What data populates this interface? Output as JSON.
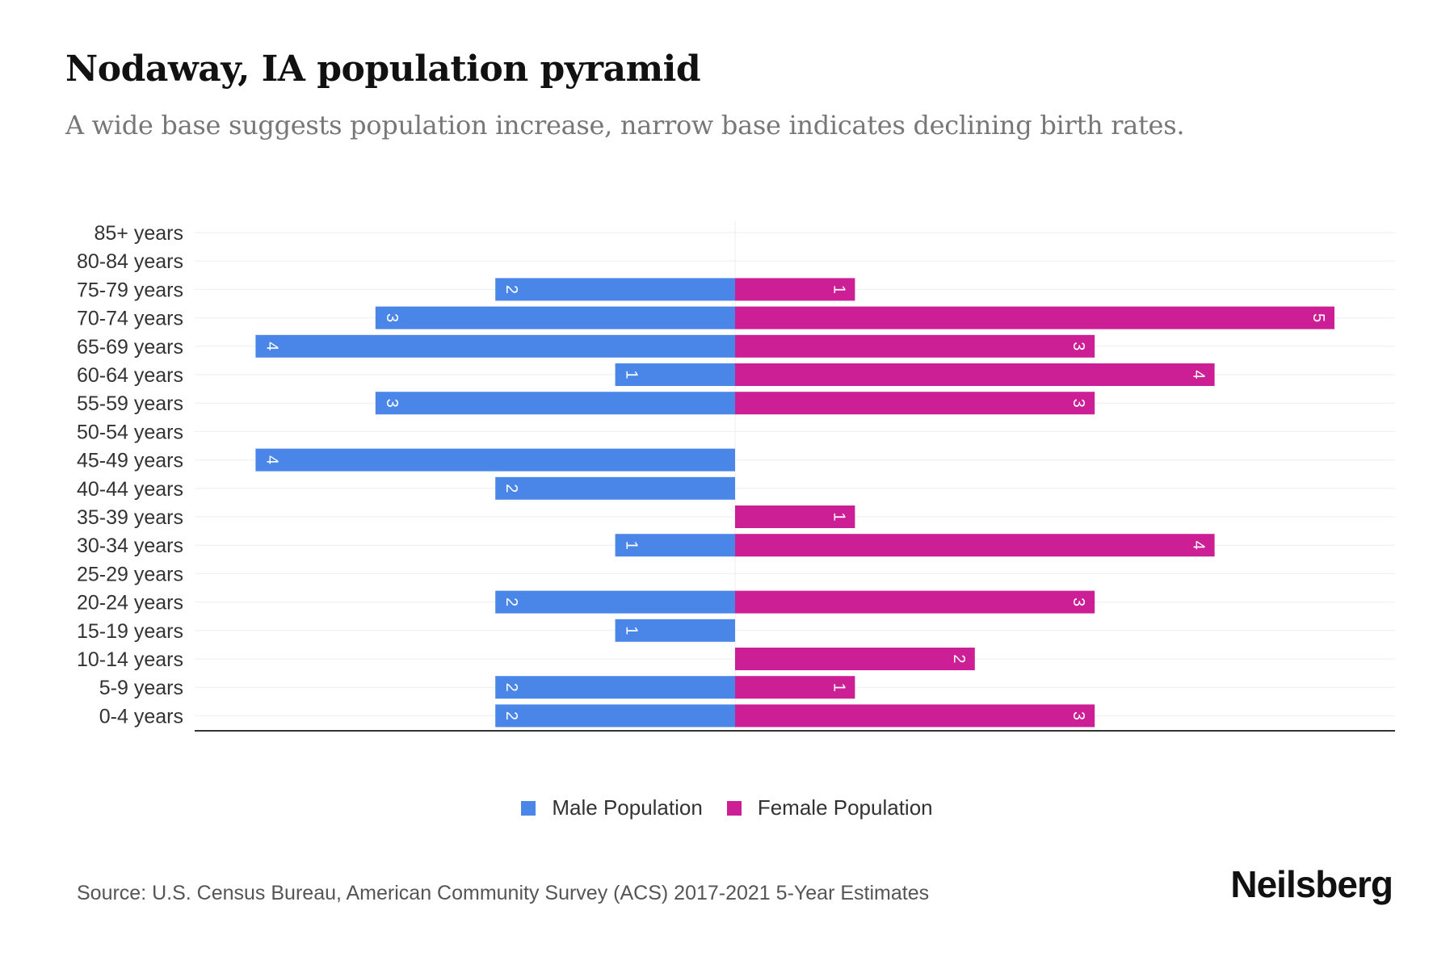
{
  "title": "Nodaway, IA population pyramid",
  "subtitle": "A wide base suggests population increase, narrow base indicates declining birth rates.",
  "source": "Source: U.S. Census Bureau, American Community Survey (ACS) 2017-2021 5-Year Estimates",
  "logo": "Neilsberg",
  "colors": {
    "male": "#4a86e8",
    "female": "#cc1f96"
  },
  "chart_data": {
    "type": "bar",
    "orientation": "horizontal-pyramid",
    "categories": [
      "85+ years",
      "80-84 years",
      "75-79 years",
      "70-74 years",
      "65-69 years",
      "60-64 years",
      "55-59 years",
      "50-54 years",
      "45-49 years",
      "40-44 years",
      "35-39 years",
      "30-34 years",
      "25-29 years",
      "20-24 years",
      "15-19 years",
      "10-14 years",
      "5-9 years",
      "0-4 years"
    ],
    "series": [
      {
        "name": "Male Population",
        "values": [
          0,
          0,
          2,
          3,
          4,
          1,
          3,
          0,
          4,
          2,
          0,
          1,
          0,
          2,
          1,
          0,
          2,
          2
        ]
      },
      {
        "name": "Female Population",
        "values": [
          0,
          0,
          1,
          5,
          3,
          4,
          3,
          0,
          0,
          0,
          1,
          4,
          0,
          3,
          0,
          2,
          1,
          3
        ]
      }
    ],
    "xlim": [
      -4.5,
      5.5
    ],
    "legend": "bottom-center",
    "grid": true
  }
}
